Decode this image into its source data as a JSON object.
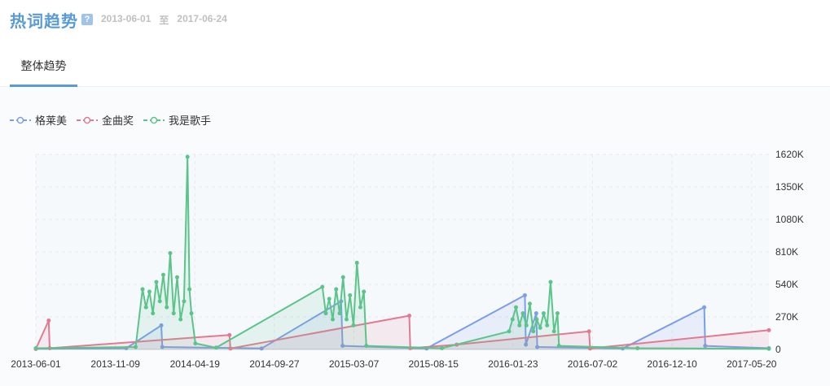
{
  "header": {
    "title": "热词趋势",
    "help": "?",
    "date_from": "2013-06-01",
    "date_sep": "至",
    "date_to": "2017-06-24"
  },
  "tabs": [
    {
      "label": "整体趋势",
      "active": true
    }
  ],
  "colors": {
    "accent": "#5b9bd5",
    "grid": "#e6e9ee"
  },
  "chart_data": {
    "type": "line",
    "x_ticks": [
      "2013-06-01",
      "2013-11-09",
      "2014-04-19",
      "2014-09-27",
      "2015-03-07",
      "2015-08-15",
      "2016-01-23",
      "2016-07-02",
      "2016-12-10",
      "2017-05-20"
    ],
    "y_ticks": [
      "0",
      "270K",
      "540K",
      "810K",
      "1080K",
      "1350K",
      "1620K"
    ],
    "ylim": [
      0,
      1620000
    ],
    "xlim": [
      "2013-06-01",
      "2017-06-24"
    ],
    "y_axis_side": "right",
    "legend_position": "top-left",
    "grid": true,
    "series": [
      {
        "name": "格莱美",
        "color": "#7b9ee8",
        "points": [
          [
            "2013-06-01",
            5000
          ],
          [
            "2013-12-01",
            10000
          ],
          [
            "2014-02-10",
            200000
          ],
          [
            "2014-02-12",
            20000
          ],
          [
            "2014-09-01",
            8000
          ],
          [
            "2015-02-09",
            400000
          ],
          [
            "2015-02-12",
            30000
          ],
          [
            "2015-08-01",
            8000
          ],
          [
            "2016-02-16",
            450000
          ],
          [
            "2016-02-18",
            40000
          ],
          [
            "2016-03-10",
            300000
          ],
          [
            "2016-03-12",
            20000
          ],
          [
            "2016-09-01",
            8000
          ],
          [
            "2017-02-13",
            350000
          ],
          [
            "2017-02-15",
            30000
          ],
          [
            "2017-06-24",
            10000
          ]
        ]
      },
      {
        "name": "金曲奖",
        "color": "#e07b91",
        "points": [
          [
            "2013-06-01",
            4000
          ],
          [
            "2013-06-27",
            240000
          ],
          [
            "2013-06-29",
            10000
          ],
          [
            "2014-06-28",
            120000
          ],
          [
            "2014-06-30",
            8000
          ],
          [
            "2015-06-27",
            280000
          ],
          [
            "2015-06-29",
            10000
          ],
          [
            "2015-10-01",
            40000
          ],
          [
            "2016-06-25",
            150000
          ],
          [
            "2016-06-27",
            8000
          ],
          [
            "2017-06-24",
            160000
          ]
        ]
      },
      {
        "name": "我是歌手",
        "color": "#5bc48a",
        "points": [
          [
            "2013-06-01",
            10000
          ],
          [
            "2013-12-20",
            20000
          ],
          [
            "2014-01-03",
            500000
          ],
          [
            "2014-01-10",
            350000
          ],
          [
            "2014-01-17",
            480000
          ],
          [
            "2014-01-24",
            300000
          ],
          [
            "2014-01-31",
            560000
          ],
          [
            "2014-02-07",
            400000
          ],
          [
            "2014-02-14",
            620000
          ],
          [
            "2014-02-21",
            350000
          ],
          [
            "2014-02-28",
            800000
          ],
          [
            "2014-03-07",
            300000
          ],
          [
            "2014-03-14",
            600000
          ],
          [
            "2014-03-21",
            250000
          ],
          [
            "2014-03-28",
            400000
          ],
          [
            "2014-04-04",
            1600000
          ],
          [
            "2014-04-08",
            500000
          ],
          [
            "2014-04-12",
            300000
          ],
          [
            "2014-04-20",
            50000
          ],
          [
            "2014-06-01",
            15000
          ],
          [
            "2015-01-02",
            520000
          ],
          [
            "2015-01-09",
            300000
          ],
          [
            "2015-01-16",
            420000
          ],
          [
            "2015-01-23",
            250000
          ],
          [
            "2015-01-30",
            500000
          ],
          [
            "2015-02-06",
            300000
          ],
          [
            "2015-02-13",
            600000
          ],
          [
            "2015-02-20",
            250000
          ],
          [
            "2015-02-27",
            450000
          ],
          [
            "2015-03-06",
            200000
          ],
          [
            "2015-03-13",
            720000
          ],
          [
            "2015-03-20",
            350000
          ],
          [
            "2015-03-27",
            480000
          ],
          [
            "2015-04-01",
            30000
          ],
          [
            "2015-09-01",
            10000
          ],
          [
            "2016-01-15",
            150000
          ],
          [
            "2016-01-22",
            250000
          ],
          [
            "2016-01-29",
            350000
          ],
          [
            "2016-02-05",
            200000
          ],
          [
            "2016-02-12",
            300000
          ],
          [
            "2016-02-19",
            200000
          ],
          [
            "2016-02-26",
            380000
          ],
          [
            "2016-03-04",
            150000
          ],
          [
            "2016-03-11",
            250000
          ],
          [
            "2016-03-18",
            180000
          ],
          [
            "2016-03-25",
            300000
          ],
          [
            "2016-04-01",
            200000
          ],
          [
            "2016-04-08",
            560000
          ],
          [
            "2016-04-15",
            150000
          ],
          [
            "2016-04-22",
            300000
          ],
          [
            "2016-04-25",
            30000
          ],
          [
            "2016-10-01",
            10000
          ],
          [
            "2017-06-24",
            5000
          ]
        ]
      }
    ]
  }
}
